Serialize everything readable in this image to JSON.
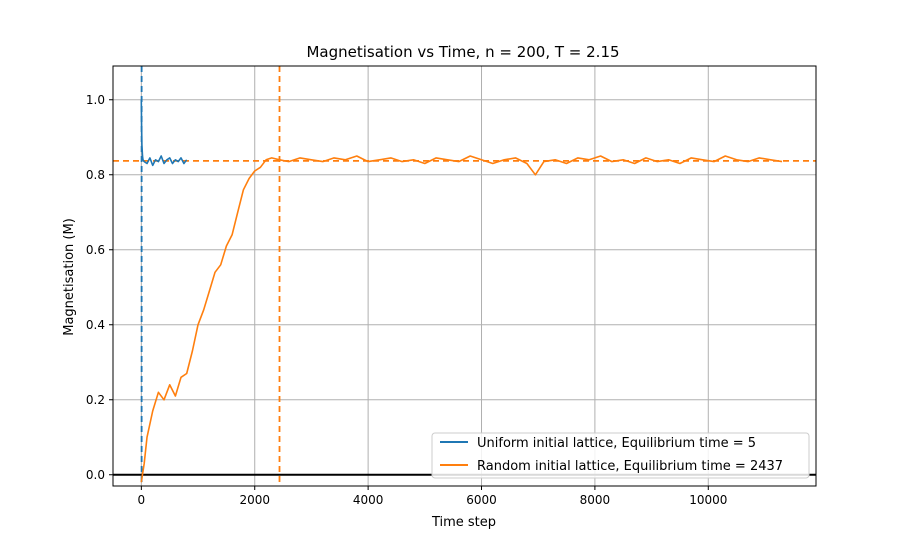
{
  "chart_data": {
    "type": "line",
    "title": "Magnetisation vs Time, n = 200, T = 2.15",
    "xlabel": "Time step",
    "ylabel": "Magnetisation (M)",
    "xlim": [
      -500,
      11900
    ],
    "ylim": [
      -0.03,
      1.09
    ],
    "xticks": [
      0,
      2000,
      4000,
      6000,
      8000,
      10000
    ],
    "xtick_labels": [
      "0",
      "2000",
      "4000",
      "6000",
      "8000",
      "10000"
    ],
    "yticks": [
      0.0,
      0.2,
      0.4,
      0.6,
      0.8,
      1.0
    ],
    "ytick_labels": [
      "0.0",
      "0.2",
      "0.4",
      "0.6",
      "0.8",
      "1.0"
    ],
    "grid": true,
    "legend_position": "lower-right",
    "series": [
      {
        "name": "Uniform initial lattice, Equilibrium time = 5",
        "color": "#1f77b4",
        "x": [
          0,
          5,
          10,
          20,
          30,
          50,
          100,
          150,
          200,
          250,
          300,
          350,
          400,
          450,
          500,
          550,
          600,
          650,
          700,
          750,
          800
        ],
        "y": [
          1.0,
          0.93,
          0.88,
          0.85,
          0.84,
          0.835,
          0.83,
          0.845,
          0.825,
          0.84,
          0.835,
          0.85,
          0.83,
          0.84,
          0.845,
          0.83,
          0.84,
          0.835,
          0.845,
          0.83,
          0.84
        ]
      },
      {
        "name": "Random initial lattice, Equilibrium time = 2437",
        "color": "#ff7f0e",
        "x": [
          0,
          50,
          100,
          200,
          300,
          400,
          500,
          600,
          700,
          800,
          900,
          1000,
          1100,
          1200,
          1300,
          1400,
          1500,
          1600,
          1700,
          1800,
          1900,
          2000,
          2100,
          2200,
          2300,
          2437,
          2600,
          2800,
          3000,
          3200,
          3400,
          3600,
          3800,
          4000,
          4200,
          4400,
          4600,
          4800,
          5000,
          5200,
          5400,
          5600,
          5800,
          6000,
          6200,
          6400,
          6600,
          6800,
          6950,
          7100,
          7300,
          7500,
          7700,
          7900,
          8100,
          8300,
          8500,
          8700,
          8900,
          9100,
          9300,
          9500,
          9700,
          9900,
          10100,
          10300,
          10500,
          10700,
          10900,
          11100,
          11300
        ],
        "y": [
          -0.02,
          0.03,
          0.1,
          0.17,
          0.22,
          0.2,
          0.24,
          0.21,
          0.26,
          0.27,
          0.33,
          0.4,
          0.44,
          0.49,
          0.54,
          0.56,
          0.61,
          0.64,
          0.7,
          0.76,
          0.79,
          0.81,
          0.82,
          0.84,
          0.845,
          0.84,
          0.835,
          0.845,
          0.84,
          0.835,
          0.845,
          0.84,
          0.85,
          0.835,
          0.84,
          0.845,
          0.835,
          0.84,
          0.83,
          0.845,
          0.84,
          0.835,
          0.85,
          0.84,
          0.83,
          0.84,
          0.845,
          0.83,
          0.8,
          0.835,
          0.84,
          0.83,
          0.845,
          0.84,
          0.85,
          0.835,
          0.84,
          0.83,
          0.845,
          0.835,
          0.84,
          0.83,
          0.845,
          0.84,
          0.835,
          0.85,
          0.84,
          0.835,
          0.845,
          0.84,
          0.835
        ]
      }
    ],
    "reference_lines": [
      {
        "orientation": "vertical",
        "x": 5,
        "color": "#1f77b4",
        "style": "dashed"
      },
      {
        "orientation": "vertical",
        "x": 2437,
        "color": "#ff7f0e",
        "style": "dashed"
      },
      {
        "orientation": "horizontal",
        "y": 0.837,
        "color": "#ff7f0e",
        "style": "dashed"
      },
      {
        "orientation": "horizontal",
        "y": 0.0,
        "color": "#000000",
        "style": "solid"
      }
    ]
  }
}
